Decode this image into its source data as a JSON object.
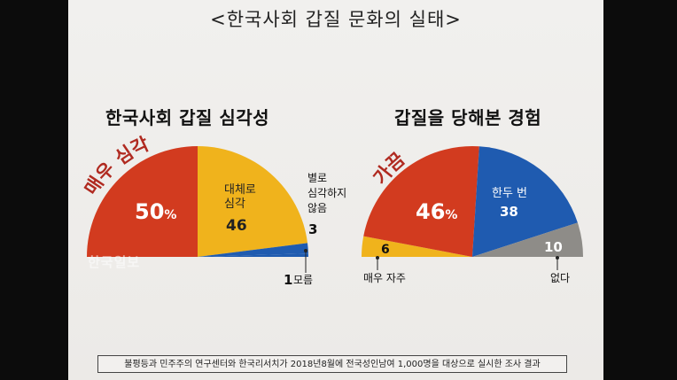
{
  "title": "<한국사회 갑질 문화의 실태>",
  "watermark": "한국일보",
  "footnote": "불평등과 민주주의 연구센터와 한국리서치가 2018년8월에 전국성인남여 1,000명을 대상으로 실시한 조사 결과",
  "colors": {
    "red": "#d23b1f",
    "yellow": "#f0b31c",
    "blue": "#1f5bb0",
    "gray": "#8e8c88",
    "curve_red": "#b02a20"
  },
  "chart_data": [
    {
      "type": "pie",
      "layout": "semicircle",
      "title": "한국사회 갑질 심각성",
      "slices": [
        {
          "label": "매우 심각",
          "value": 50,
          "display": "50",
          "unit": "%",
          "color": "red"
        },
        {
          "label": "대체로 심각",
          "value": 46,
          "display": "46",
          "color": "yellow"
        },
        {
          "label": "별로 심각하지 않음",
          "value": 3,
          "display": "3",
          "color": "blue"
        },
        {
          "label": "모름",
          "value": 1,
          "display": "1",
          "color": "blue"
        }
      ],
      "labels": {
        "curve": "매우 심각",
        "big": "50%",
        "big_num": "50",
        "big_unit": "%",
        "yellow_line1": "대체로",
        "yellow_line2": "심각",
        "yellow_value": "46",
        "note_line1": "별로",
        "note_line2": "심각하지",
        "note_line3": "않음",
        "note_value": "3",
        "unknown_value": "1",
        "unknown_label": "모름"
      }
    },
    {
      "type": "pie",
      "layout": "semicircle",
      "title": "갑질을 당해본 경험",
      "slices": [
        {
          "label": "매우 자주",
          "value": 6,
          "display": "6",
          "color": "yellow"
        },
        {
          "label": "가끔",
          "value": 46,
          "display": "46",
          "unit": "%",
          "color": "red"
        },
        {
          "label": "한두 번",
          "value": 38,
          "display": "38",
          "color": "blue"
        },
        {
          "label": "없다",
          "value": 10,
          "display": "10",
          "color": "gray"
        }
      ],
      "labels": {
        "curve": "가끔",
        "big": "46%",
        "big_num": "46",
        "big_unit": "%",
        "blue_line1": "한두 번",
        "blue_value": "38",
        "gray_value": "10",
        "often_value": "6",
        "often_label": "매우 자주",
        "none_label": "없다"
      }
    }
  ]
}
